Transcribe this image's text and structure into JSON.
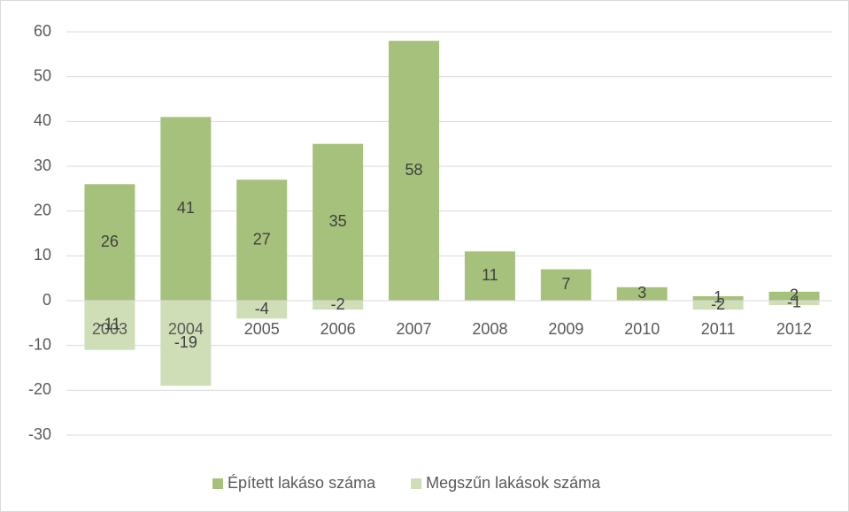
{
  "chart_data": {
    "type": "bar",
    "categories": [
      "2003",
      "2004",
      "2005",
      "2006",
      "2007",
      "2008",
      "2009",
      "2010",
      "2011",
      "2012"
    ],
    "series": [
      {
        "name": "Épített lakáso száma",
        "color": "#a6c17c",
        "values": [
          26,
          41,
          27,
          35,
          58,
          11,
          7,
          3,
          1,
          2
        ]
      },
      {
        "name": "Megszűn lakások száma",
        "color": "#cfdeb7",
        "values": [
          -11,
          -19,
          -4,
          -2,
          null,
          null,
          null,
          null,
          -2,
          -1
        ]
      }
    ],
    "ylim": [
      -30,
      60
    ],
    "yticks": [
      -30,
      -20,
      -10,
      0,
      10,
      20,
      30,
      40,
      50,
      60
    ],
    "grid": true,
    "legend": "bottom"
  }
}
